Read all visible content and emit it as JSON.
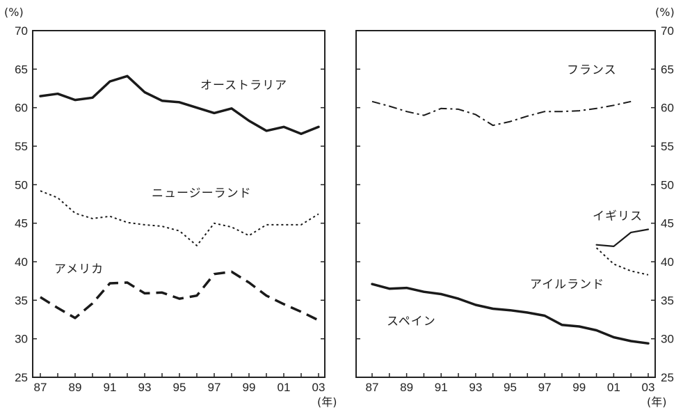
{
  "chart_data": {
    "type": "line",
    "y_unit": "(%)",
    "x_unit": "(年)",
    "ylim": [
      25,
      70
    ],
    "yticks": [
      "25",
      "30",
      "35",
      "40",
      "45",
      "50",
      "55",
      "60",
      "65",
      "70"
    ],
    "xlim": [
      1987,
      2003
    ],
    "xticks": [
      "87",
      "89",
      "91",
      "93",
      "95",
      "97",
      "99",
      "01",
      "03"
    ],
    "grid": false,
    "legend": "inline labels",
    "panels": [
      {
        "series": [
          {
            "name": "オーストラリア",
            "line_style": "solid-thick",
            "x": [
              1987,
              1988,
              1989,
              1990,
              1991,
              1992,
              1993,
              1994,
              1995,
              1996,
              1997,
              1998,
              1999,
              2000,
              2001,
              2002,
              2003
            ],
            "values": [
              61.5,
              61.8,
              61.0,
              61.3,
              63.4,
              64.1,
              62.0,
              60.9,
              60.7,
              60.0,
              59.3,
              59.9,
              58.3,
              57.0,
              57.5,
              56.6,
              57.5
            ]
          },
          {
            "name": "ニュージーランド",
            "line_style": "dotted",
            "x": [
              1987,
              1988,
              1989,
              1990,
              1991,
              1992,
              1993,
              1994,
              1995,
              1996,
              1997,
              1998,
              1999,
              2000,
              2001,
              2002,
              2003
            ],
            "values": [
              49.2,
              48.3,
              46.3,
              45.6,
              45.9,
              45.1,
              44.8,
              44.6,
              44.0,
              42.1,
              45.0,
              44.5,
              43.4,
              44.8,
              44.8,
              44.8,
              46.2
            ]
          },
          {
            "name": "アメリカ",
            "line_style": "dashed-thick",
            "x": [
              1987,
              1988,
              1989,
              1990,
              1991,
              1992,
              1993,
              1994,
              1995,
              1996,
              1997,
              1998,
              1999,
              2000,
              2001,
              2002,
              2003
            ],
            "values": [
              35.4,
              34.0,
              32.7,
              34.6,
              37.2,
              37.3,
              35.9,
              36.0,
              35.2,
              35.6,
              38.4,
              38.7,
              37.3,
              35.6,
              34.5,
              33.5,
              32.4
            ]
          }
        ]
      },
      {
        "series": [
          {
            "name": "フランス",
            "line_style": "dash-dot",
            "x": [
              1987,
              1988,
              1989,
              1990,
              1991,
              1992,
              1993,
              1994,
              1995,
              1996,
              1997,
              1998,
              1999,
              2000,
              2001,
              2002
            ],
            "values": [
              60.8,
              60.2,
              59.5,
              59.0,
              59.9,
              59.8,
              59.1,
              57.7,
              58.2,
              58.9,
              59.5,
              59.5,
              59.6,
              59.9,
              60.3,
              60.8
            ]
          },
          {
            "name": "イギリス",
            "line_style": "solid-thin",
            "x": [
              2000,
              2001,
              2002,
              2003
            ],
            "values": [
              42.2,
              42.0,
              43.8,
              44.2
            ]
          },
          {
            "name": "アイルランド",
            "line_style": "dotted",
            "x": [
              2000,
              2001,
              2002,
              2003
            ],
            "values": [
              41.8,
              39.7,
              38.8,
              38.3
            ]
          },
          {
            "name": "スペイン",
            "line_style": "solid-thick",
            "x": [
              1987,
              1988,
              1989,
              1990,
              1991,
              1992,
              1993,
              1994,
              1995,
              1996,
              1997,
              1998,
              1999,
              2000,
              2001,
              2002,
              2003
            ],
            "values": [
              37.1,
              36.5,
              36.6,
              36.1,
              35.8,
              35.2,
              34.4,
              33.9,
              33.7,
              33.4,
              33.0,
              31.8,
              31.6,
              31.1,
              30.2,
              29.7,
              29.4
            ]
          }
        ]
      }
    ]
  }
}
